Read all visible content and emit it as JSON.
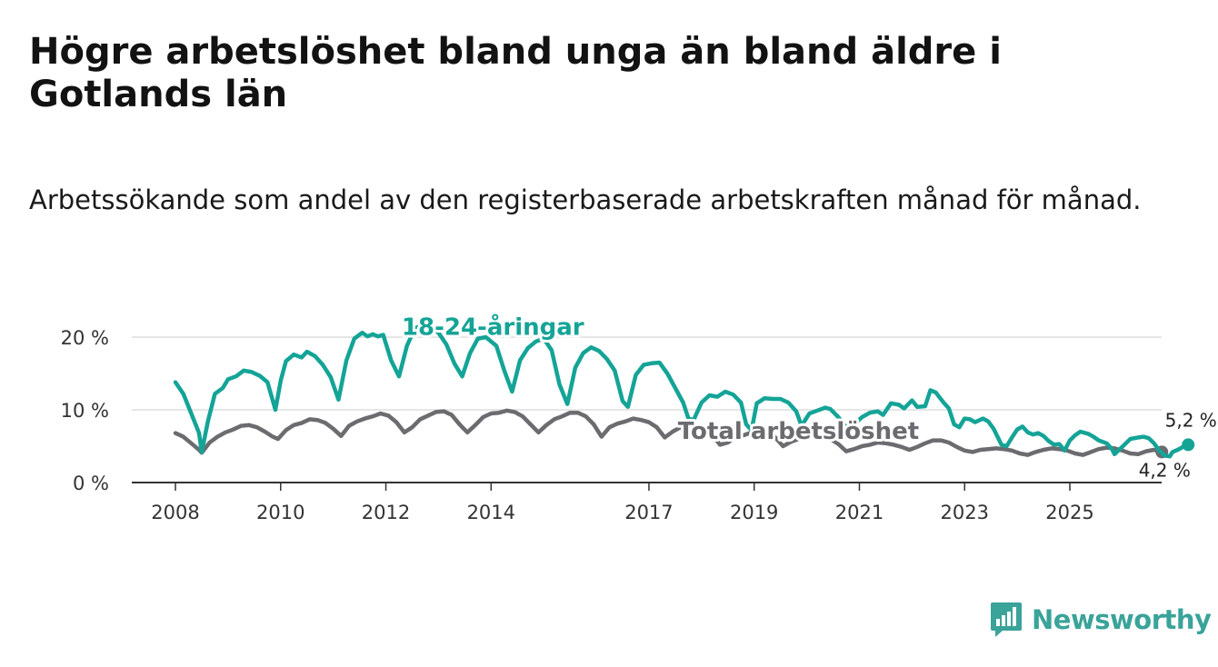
{
  "header": {
    "title": "Högre arbetslöshet bland unga än bland äldre i Gotlands län",
    "subtitle": "Arbetssökande som andel av den registerbaserade arbetskraften månad för månad."
  },
  "brand": {
    "name": "Newsworthy"
  },
  "colors": {
    "youth": "#14a497",
    "total": "#6b6b70",
    "grid": "#dddddd",
    "axis": "#333333",
    "brand": "#3aa39a"
  },
  "chart_data": {
    "type": "line",
    "title": "Högre arbetslöshet bland unga än bland äldre i Gotlands län",
    "subtitle": "Arbetssökande som andel av den registerbaserade arbetskraften månad för månad.",
    "xlabel": "",
    "ylabel": "",
    "xlim": [
      2007.8,
      2026.6
    ],
    "ylim": [
      0,
      20
    ],
    "y_ticks": [
      0,
      10,
      20
    ],
    "y_tick_labels": [
      "0 %",
      "10 %",
      "20 %"
    ],
    "x_ticks": [
      2008,
      2010,
      2012,
      2014,
      2017,
      2019,
      2021,
      2023,
      2025
    ],
    "x_tick_labels": [
      "2008",
      "2010",
      "2012",
      "2014",
      "2017",
      "2019",
      "2021",
      "2023",
      "2025"
    ],
    "grid": true,
    "series": [
      {
        "name": "18-24-åringar",
        "label": "18-24-åringar",
        "end_label": "5,2 %",
        "points": [
          [
            2008.0,
            13.8
          ],
          [
            2008.15,
            12.2
          ],
          [
            2008.3,
            9.5
          ],
          [
            2008.45,
            6.8
          ],
          [
            2008.5,
            4.2
          ],
          [
            2008.62,
            8.5
          ],
          [
            2008.75,
            12.2
          ],
          [
            2008.9,
            13.0
          ],
          [
            2009.0,
            14.2
          ],
          [
            2009.15,
            14.6
          ],
          [
            2009.3,
            15.4
          ],
          [
            2009.45,
            15.2
          ],
          [
            2009.6,
            14.7
          ],
          [
            2009.75,
            13.8
          ],
          [
            2009.9,
            10.0
          ],
          [
            2010.0,
            14.0
          ],
          [
            2010.1,
            16.7
          ],
          [
            2010.25,
            17.6
          ],
          [
            2010.4,
            17.2
          ],
          [
            2010.5,
            18.0
          ],
          [
            2010.65,
            17.4
          ],
          [
            2010.8,
            16.2
          ],
          [
            2010.95,
            14.5
          ],
          [
            2011.1,
            11.4
          ],
          [
            2011.25,
            16.8
          ],
          [
            2011.4,
            19.8
          ],
          [
            2011.55,
            20.6
          ],
          [
            2011.65,
            20.1
          ],
          [
            2011.75,
            20.4
          ],
          [
            2011.85,
            20.1
          ],
          [
            2011.95,
            20.3
          ],
          [
            2012.1,
            16.8
          ],
          [
            2012.25,
            14.6
          ],
          [
            2012.4,
            18.8
          ],
          [
            2012.55,
            21.2
          ],
          [
            2012.7,
            21.7
          ],
          [
            2012.85,
            21.4
          ],
          [
            2013.0,
            20.6
          ],
          [
            2013.15,
            19.0
          ],
          [
            2013.3,
            16.4
          ],
          [
            2013.45,
            14.6
          ],
          [
            2013.6,
            17.8
          ],
          [
            2013.75,
            19.8
          ],
          [
            2013.9,
            20.0
          ],
          [
            2014.1,
            18.8
          ],
          [
            2014.25,
            15.4
          ],
          [
            2014.4,
            12.5
          ],
          [
            2014.55,
            16.8
          ],
          [
            2014.7,
            18.5
          ],
          [
            2014.85,
            19.4
          ],
          [
            2015.0,
            19.8
          ],
          [
            2015.15,
            18.2
          ],
          [
            2015.3,
            13.5
          ],
          [
            2015.45,
            10.8
          ],
          [
            2015.6,
            15.8
          ],
          [
            2015.75,
            17.8
          ],
          [
            2015.9,
            18.6
          ],
          [
            2016.05,
            18.1
          ],
          [
            2016.2,
            17.0
          ],
          [
            2016.35,
            15.4
          ],
          [
            2016.5,
            11.2
          ],
          [
            2016.6,
            10.4
          ],
          [
            2016.75,
            14.8
          ],
          [
            2016.9,
            16.2
          ],
          [
            2017.05,
            16.4
          ],
          [
            2017.2,
            16.5
          ],
          [
            2017.35,
            15.0
          ],
          [
            2017.5,
            13.0
          ],
          [
            2017.65,
            11.0
          ],
          [
            2017.75,
            8.8
          ],
          [
            2017.85,
            8.6
          ],
          [
            2018.0,
            11.0
          ],
          [
            2018.15,
            12.0
          ],
          [
            2018.3,
            11.8
          ],
          [
            2018.45,
            12.5
          ],
          [
            2018.6,
            12.1
          ],
          [
            2018.75,
            11.0
          ],
          [
            2018.85,
            8.0
          ],
          [
            2018.95,
            7.2
          ],
          [
            2019.05,
            10.9
          ],
          [
            2019.2,
            11.6
          ],
          [
            2019.35,
            11.5
          ],
          [
            2019.5,
            11.5
          ],
          [
            2019.65,
            11.0
          ],
          [
            2019.8,
            9.8
          ],
          [
            2019.9,
            7.8
          ],
          [
            2020.05,
            9.5
          ],
          [
            2020.2,
            9.9
          ],
          [
            2020.35,
            10.3
          ],
          [
            2020.45,
            10.1
          ],
          [
            2020.6,
            9.0
          ],
          [
            2020.75,
            7.6
          ],
          [
            2020.9,
            8.0
          ],
          [
            2021.05,
            9.0
          ],
          [
            2021.2,
            9.6
          ],
          [
            2021.35,
            9.8
          ],
          [
            2021.45,
            9.3
          ],
          [
            2021.6,
            10.9
          ],
          [
            2021.75,
            10.7
          ],
          [
            2021.85,
            10.2
          ],
          [
            2022.0,
            11.3
          ],
          [
            2022.1,
            10.4
          ],
          [
            2022.25,
            10.5
          ],
          [
            2022.35,
            12.7
          ],
          [
            2022.45,
            12.4
          ],
          [
            2022.6,
            11.0
          ],
          [
            2022.7,
            10.2
          ],
          [
            2022.8,
            8.0
          ],
          [
            2022.9,
            7.6
          ],
          [
            2023.0,
            8.8
          ],
          [
            2023.1,
            8.7
          ],
          [
            2023.2,
            8.3
          ],
          [
            2023.35,
            8.8
          ],
          [
            2023.45,
            8.4
          ],
          [
            2023.55,
            7.4
          ],
          [
            2023.7,
            5.2
          ],
          [
            2023.8,
            5.0
          ],
          [
            2023.9,
            6.2
          ],
          [
            2024.0,
            7.3
          ],
          [
            2024.1,
            7.7
          ],
          [
            2024.2,
            6.9
          ],
          [
            2024.3,
            6.6
          ],
          [
            2024.4,
            6.8
          ],
          [
            2024.5,
            6.4
          ],
          [
            2024.6,
            5.7
          ],
          [
            2024.7,
            5.2
          ],
          [
            2024.8,
            5.3
          ],
          [
            2024.9,
            4.4
          ],
          [
            2025.0,
            5.8
          ],
          [
            2025.1,
            6.5
          ],
          [
            2025.2,
            7.0
          ],
          [
            2025.35,
            6.7
          ],
          [
            2025.45,
            6.3
          ],
          [
            2025.55,
            5.8
          ],
          [
            2025.7,
            5.4
          ],
          [
            2025.8,
            4.6
          ],
          [
            2025.85,
            3.9
          ],
          [
            2025.95,
            4.6
          ],
          [
            2026.05,
            5.3
          ],
          [
            2026.15,
            6.0
          ],
          [
            2026.3,
            6.2
          ],
          [
            2026.4,
            6.3
          ],
          [
            2026.5,
            6.1
          ],
          [
            2026.6,
            5.4
          ],
          [
            2026.7,
            4.4
          ],
          [
            2026.8,
            3.7
          ],
          [
            2026.9,
            3.6
          ],
          [
            2026.95,
            4.2
          ],
          [
            2027.05,
            4.5
          ],
          [
            2027.15,
            4.9
          ],
          [
            2027.25,
            5.2
          ]
        ]
      },
      {
        "name": "Total arbetslöshet",
        "label": "Total arbetslöshet",
        "end_label": "4,2 %",
        "points": [
          [
            2008.0,
            6.8
          ],
          [
            2008.15,
            6.3
          ],
          [
            2008.3,
            5.4
          ],
          [
            2008.45,
            4.5
          ],
          [
            2008.5,
            4.1
          ],
          [
            2008.65,
            5.5
          ],
          [
            2008.8,
            6.3
          ],
          [
            2008.95,
            6.9
          ],
          [
            2009.1,
            7.3
          ],
          [
            2009.25,
            7.8
          ],
          [
            2009.4,
            7.9
          ],
          [
            2009.55,
            7.6
          ],
          [
            2009.7,
            7.0
          ],
          [
            2009.85,
            6.3
          ],
          [
            2009.95,
            6.0
          ],
          [
            2010.1,
            7.2
          ],
          [
            2010.25,
            7.9
          ],
          [
            2010.4,
            8.2
          ],
          [
            2010.55,
            8.7
          ],
          [
            2010.7,
            8.6
          ],
          [
            2010.85,
            8.2
          ],
          [
            2011.0,
            7.4
          ],
          [
            2011.15,
            6.4
          ],
          [
            2011.3,
            7.8
          ],
          [
            2011.45,
            8.4
          ],
          [
            2011.6,
            8.8
          ],
          [
            2011.75,
            9.1
          ],
          [
            2011.9,
            9.5
          ],
          [
            2012.05,
            9.2
          ],
          [
            2012.2,
            8.3
          ],
          [
            2012.35,
            6.9
          ],
          [
            2012.5,
            7.6
          ],
          [
            2012.65,
            8.7
          ],
          [
            2012.8,
            9.2
          ],
          [
            2012.95,
            9.7
          ],
          [
            2013.1,
            9.8
          ],
          [
            2013.25,
            9.3
          ],
          [
            2013.4,
            8.0
          ],
          [
            2013.55,
            6.9
          ],
          [
            2013.7,
            7.9
          ],
          [
            2013.85,
            9.0
          ],
          [
            2014.0,
            9.5
          ],
          [
            2014.15,
            9.6
          ],
          [
            2014.3,
            9.9
          ],
          [
            2014.45,
            9.7
          ],
          [
            2014.6,
            9.1
          ],
          [
            2014.75,
            8.0
          ],
          [
            2014.9,
            6.9
          ],
          [
            2015.05,
            7.9
          ],
          [
            2015.2,
            8.7
          ],
          [
            2015.35,
            9.1
          ],
          [
            2015.5,
            9.6
          ],
          [
            2015.65,
            9.6
          ],
          [
            2015.8,
            9.1
          ],
          [
            2015.95,
            8.0
          ],
          [
            2016.1,
            6.3
          ],
          [
            2016.25,
            7.6
          ],
          [
            2016.4,
            8.1
          ],
          [
            2016.55,
            8.4
          ],
          [
            2016.7,
            8.8
          ],
          [
            2016.85,
            8.6
          ],
          [
            2017.0,
            8.3
          ],
          [
            2017.15,
            7.6
          ],
          [
            2017.3,
            6.2
          ],
          [
            2017.45,
            7.0
          ],
          [
            2017.6,
            7.6
          ],
          [
            2017.75,
            7.7
          ],
          [
            2017.9,
            7.7
          ],
          [
            2018.05,
            7.3
          ],
          [
            2018.2,
            6.6
          ],
          [
            2018.35,
            5.2
          ],
          [
            2018.5,
            5.5
          ],
          [
            2018.65,
            6.3
          ],
          [
            2018.8,
            6.5
          ],
          [
            2018.95,
            6.9
          ],
          [
            2019.1,
            7.0
          ],
          [
            2019.25,
            6.8
          ],
          [
            2019.4,
            6.2
          ],
          [
            2019.55,
            5.0
          ],
          [
            2019.7,
            5.6
          ],
          [
            2019.85,
            6.0
          ],
          [
            2020.0,
            6.1
          ],
          [
            2020.15,
            6.4
          ],
          [
            2020.3,
            6.4
          ],
          [
            2020.45,
            6.0
          ],
          [
            2020.6,
            5.3
          ],
          [
            2020.75,
            4.3
          ],
          [
            2020.9,
            4.6
          ],
          [
            2021.05,
            5.0
          ],
          [
            2021.2,
            5.2
          ],
          [
            2021.35,
            5.5
          ],
          [
            2021.5,
            5.4
          ],
          [
            2021.65,
            5.2
          ],
          [
            2021.8,
            4.9
          ],
          [
            2021.95,
            4.5
          ],
          [
            2022.1,
            4.9
          ],
          [
            2022.25,
            5.4
          ],
          [
            2022.4,
            5.8
          ],
          [
            2022.55,
            5.8
          ],
          [
            2022.7,
            5.5
          ],
          [
            2022.85,
            4.9
          ],
          [
            2023.0,
            4.4
          ],
          [
            2023.15,
            4.2
          ],
          [
            2023.3,
            4.5
          ],
          [
            2023.45,
            4.6
          ],
          [
            2023.6,
            4.7
          ],
          [
            2023.75,
            4.6
          ],
          [
            2023.9,
            4.4
          ],
          [
            2024.05,
            4.0
          ],
          [
            2024.2,
            3.8
          ],
          [
            2024.35,
            4.2
          ],
          [
            2024.5,
            4.5
          ],
          [
            2024.65,
            4.7
          ],
          [
            2024.8,
            4.6
          ],
          [
            2024.95,
            4.4
          ],
          [
            2025.1,
            4.0
          ],
          [
            2025.25,
            3.8
          ],
          [
            2025.4,
            4.2
          ],
          [
            2025.55,
            4.6
          ],
          [
            2025.7,
            4.8
          ],
          [
            2025.85,
            4.7
          ],
          [
            2026.0,
            4.4
          ],
          [
            2026.15,
            4.0
          ],
          [
            2026.3,
            3.9
          ],
          [
            2026.45,
            4.3
          ],
          [
            2026.6,
            4.5
          ],
          [
            2026.75,
            4.2
          ]
        ]
      }
    ],
    "legend": "inline labels on lines"
  }
}
